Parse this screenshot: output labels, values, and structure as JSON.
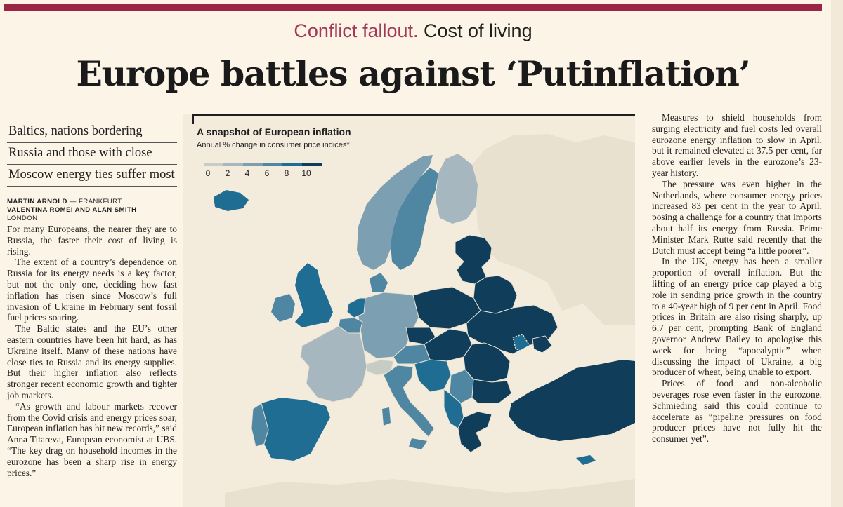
{
  "kicker": {
    "topic": "Conflict fallout.",
    "section": "Cost of living"
  },
  "headline": "Europe battles against ‘Putinflation’",
  "standfirst": [
    "Baltics, nations bordering",
    "Russia and those with close",
    "Moscow energy ties suffer most"
  ],
  "byline": {
    "line1_names": "MARTIN ARNOLD",
    "line1_sep": " — ",
    "line1_loc": "FRANKFURT",
    "line2_names": "VALENTINA ROMEI AND ALAN SMITH",
    "line3_loc": "LONDON"
  },
  "left_body": [
    "For many Europeans, the nearer they are to Russia, the faster their cost of living is rising.",
    "The extent of a country’s dependence on Russia for its energy needs is a key factor, but not the only one, deciding how fast inflation has risen since Moscow’s full invasion of Ukraine in February sent fossil fuel prices soaring.",
    "The Baltic states and the EU’s other eastern countries have been hit hard, as has Ukraine itself. Many of these nations have close ties to Russia and its energy supplies. But their higher inflation also reflects stronger recent economic growth and tighter job markets.",
    "“As growth and labour markets recover from the Covid crisis and energy prices soar, European inflation has hit new records,” said Anna Titareva, European economist at UBS. “The key drag on household incomes in the eurozone has been a sharp rise in energy prices.”"
  ],
  "graphic": {
    "title": "A snapshot of European inflation",
    "subtitle": "Annual % change in consumer price indices*",
    "legend": {
      "ticks": [
        "0",
        "2",
        "4",
        "6",
        "8",
        "10"
      ],
      "colors": [
        "#c7cdc4",
        "#a6b7bf",
        "#7d9fb2",
        "#4f87a3",
        "#1f6d92",
        "#0f3d5a"
      ]
    },
    "colors": {
      "land_outside": "#e9e1d0",
      "sea": "#f3ebdc"
    }
  },
  "right_body": [
    "Measures to shield households from surging electricity and fuel costs led overall eurozone energy inflation to slow in April, but it remained elevated at 37.5 per cent, far above earlier levels in the eurozone’s 23-year history.",
    "The pressure was even higher in the Netherlands, where consumer energy prices increased 83 per cent in the year to April, posing a challenge for a country that imports about half its energy from Russia. Prime Minister Mark Rutte said recently that the Dutch must accept being “a little poorer”.",
    "In the UK, energy has been a smaller proportion of overall inflation. But the lifting of an energy price cap played a big role in sending price growth in the country to a 40-year high of 9 per cent in April. Food prices in Britain are also rising sharply, up 6.7 per cent, prompting Bank of England governor Andrew Bailey to apologise this week for being “apocalyptic” when discussing the impact of Ukraine, a big producer of wheat, being unable to export.",
    "Prices of food and non-alcoholic beverages rose even faster in the eurozone. Schmieding said this could continue to accelerate as “pipeline pressures on food producer prices have not fully hit the consumer yet”."
  ]
}
